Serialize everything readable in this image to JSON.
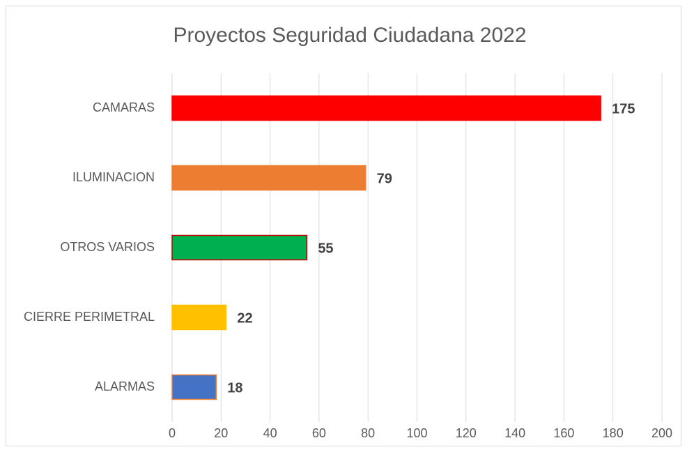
{
  "chart_data": {
    "type": "barh",
    "title": "Proyectos Seguridad Ciudadana 2022",
    "categories": [
      "CAMARAS",
      "ILUMINACION",
      "OTROS VARIOS",
      "CIERRE PERIMETRAL",
      "ALARMAS"
    ],
    "values": [
      175,
      79,
      55,
      22,
      18
    ],
    "colors": [
      "#ff0000",
      "#ed7d31",
      "#00b050",
      "#ffc000",
      "#4472c4"
    ],
    "edge_colors": [
      "#ff0000",
      "#ed7d31",
      "#c00000",
      "#ffc000",
      "#ed7d31"
    ],
    "xlim": [
      0,
      200
    ],
    "xticks": [
      0,
      20,
      40,
      60,
      80,
      100,
      120,
      140,
      160,
      180,
      200
    ],
    "grid": true
  }
}
